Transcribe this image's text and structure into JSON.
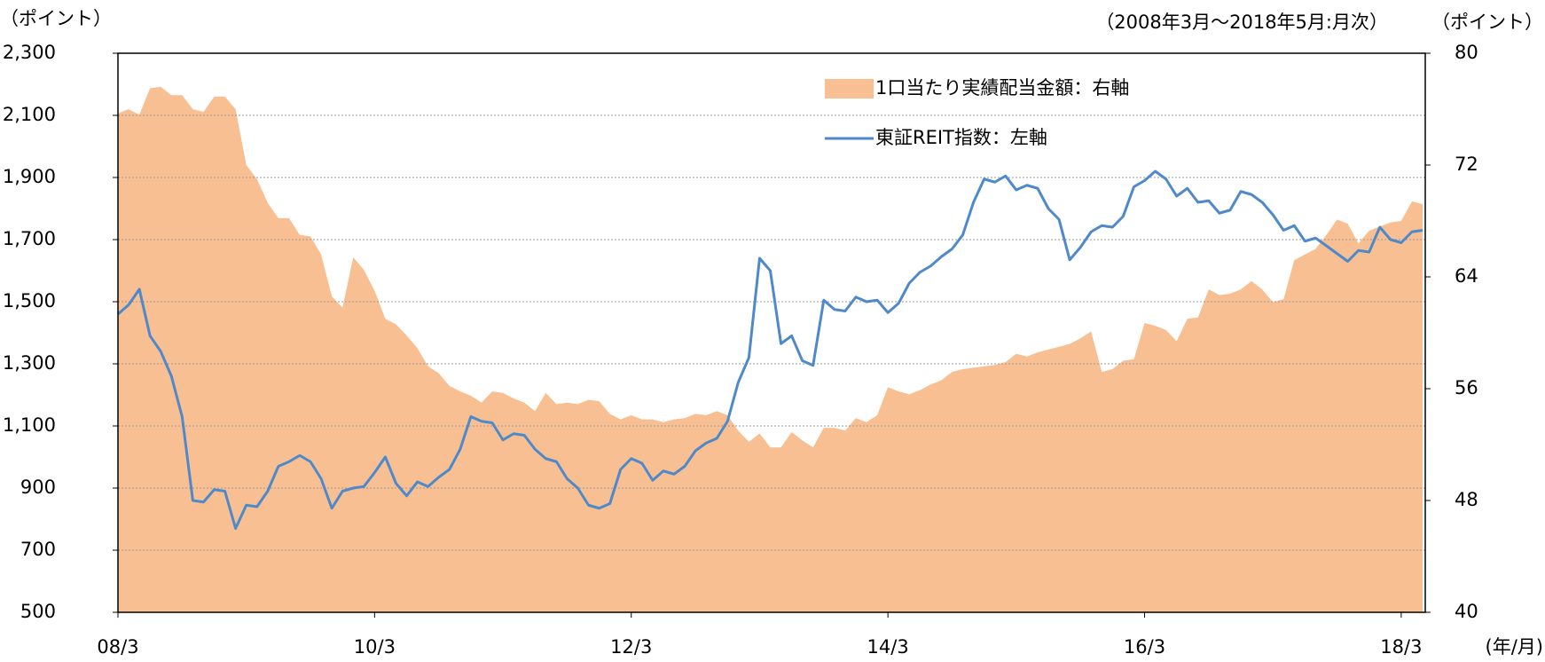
{
  "chart_data": {
    "type": "area-line",
    "y_unit_label": "（ポイント）",
    "subtitle": "（2008年3月～2018年5月:月次）",
    "y2_unit_label": "（ポイント）",
    "x_unit_label": "(年/月)",
    "categories": [
      "08/3",
      null,
      null,
      null,
      null,
      null,
      null,
      null,
      null,
      null,
      null,
      null,
      null,
      null,
      null,
      null,
      null,
      null,
      null,
      null,
      null,
      null,
      null,
      null,
      "10/3",
      null,
      null,
      null,
      null,
      null,
      null,
      null,
      null,
      null,
      null,
      null,
      null,
      null,
      null,
      null,
      null,
      null,
      null,
      null,
      null,
      null,
      null,
      null,
      "12/3",
      null,
      null,
      null,
      null,
      null,
      null,
      null,
      null,
      null,
      null,
      null,
      null,
      null,
      null,
      null,
      null,
      null,
      null,
      null,
      null,
      null,
      null,
      null,
      "14/3",
      null,
      null,
      null,
      null,
      null,
      null,
      null,
      null,
      null,
      null,
      null,
      null,
      null,
      null,
      null,
      null,
      null,
      null,
      null,
      null,
      null,
      null,
      null,
      "16/3",
      null,
      null,
      null,
      null,
      null,
      null,
      null,
      null,
      null,
      null,
      null,
      null,
      null,
      null,
      null,
      null,
      null,
      null,
      null,
      null,
      null,
      null,
      null,
      "18/3",
      null,
      null
    ],
    "series": [
      {
        "name": "1口当たり実績配当金額：右軸",
        "kind": "area",
        "axis": "y2",
        "color": "#f8c092",
        "values": [
          75.7,
          76.0,
          75.6,
          77.5,
          77.6,
          77.0,
          77.0,
          76.0,
          75.8,
          76.9,
          76.9,
          76.0,
          72.0,
          71.0,
          69.3,
          68.2,
          68.2,
          67.0,
          66.9,
          65.6,
          62.6,
          61.8,
          65.4,
          64.5,
          63.0,
          61.0,
          60.6,
          59.8,
          58.9,
          57.6,
          57.1,
          56.2,
          55.8,
          55.5,
          55.0,
          55.8,
          55.7,
          55.3,
          55.0,
          54.4,
          55.7,
          54.9,
          55.0,
          54.9,
          55.2,
          55.1,
          54.2,
          53.8,
          54.1,
          53.8,
          53.8,
          53.6,
          53.8,
          53.9,
          54.2,
          54.1,
          54.4,
          54.1,
          53.0,
          52.2,
          52.8,
          51.8,
          51.8,
          52.9,
          52.3,
          51.8,
          53.2,
          53.2,
          53.0,
          53.9,
          53.6,
          54.1,
          56.1,
          55.8,
          55.6,
          55.9,
          56.3,
          56.6,
          57.2,
          57.4,
          57.5,
          57.6,
          57.7,
          57.9,
          58.5,
          58.3,
          58.6,
          58.8,
          59.0,
          59.2,
          59.6,
          60.1,
          57.2,
          57.4,
          58.0,
          58.1,
          60.7,
          60.5,
          60.2,
          59.4,
          61.0,
          61.1,
          63.1,
          62.7,
          62.8,
          63.1,
          63.7,
          63.1,
          62.2,
          62.4,
          65.2,
          65.6,
          66.0,
          67.0,
          68.1,
          67.8,
          66.4,
          67.3,
          67.6,
          67.9,
          68.0,
          69.4,
          69.2
        ]
      },
      {
        "name": "東証REIT指数：左軸",
        "kind": "line",
        "axis": "y",
        "color": "#4f89c9",
        "values": [
          1460,
          1490,
          1540,
          1390,
          1340,
          1260,
          1130,
          860,
          855,
          895,
          890,
          770,
          845,
          840,
          890,
          970,
          985,
          1005,
          985,
          930,
          835,
          890,
          900,
          905,
          950,
          1000,
          915,
          875,
          920,
          905,
          935,
          960,
          1025,
          1130,
          1115,
          1110,
          1055,
          1075,
          1070,
          1025,
          995,
          985,
          930,
          900,
          845,
          835,
          850,
          960,
          995,
          980,
          925,
          955,
          945,
          970,
          1020,
          1045,
          1060,
          1115,
          1240,
          1320,
          1640,
          1600,
          1365,
          1390,
          1310,
          1295,
          1505,
          1475,
          1470,
          1515,
          1500,
          1505,
          1465,
          1495,
          1560,
          1595,
          1615,
          1645,
          1670,
          1715,
          1820,
          1895,
          1885,
          1905,
          1860,
          1875,
          1865,
          1800,
          1765,
          1635,
          1675,
          1725,
          1745,
          1740,
          1775,
          1870,
          1890,
          1920,
          1895,
          1840,
          1865,
          1820,
          1825,
          1785,
          1795,
          1855,
          1845,
          1820,
          1780,
          1730,
          1745,
          1695,
          1705,
          1680,
          1655,
          1630,
          1665,
          1660,
          1740,
          1700,
          1690,
          1725,
          1730
        ]
      }
    ],
    "ylim": [
      500,
      2300
    ],
    "yticks": [
      500,
      700,
      900,
      {
        "value": 1100,
        "label": "1,100"
      },
      {
        "value": 1300,
        "label": "1,300"
      },
      {
        "value": 1500,
        "label": "1,500"
      },
      {
        "value": 1700,
        "label": "1,700"
      },
      {
        "value": 1900,
        "label": "1,900"
      },
      {
        "value": 2100,
        "label": "2,100"
      },
      {
        "value": 2300,
        "label": "2,300"
      }
    ],
    "y2lim": [
      40,
      80
    ],
    "y2ticks": [
      40,
      48,
      56,
      64,
      72,
      80
    ],
    "grid": true
  }
}
